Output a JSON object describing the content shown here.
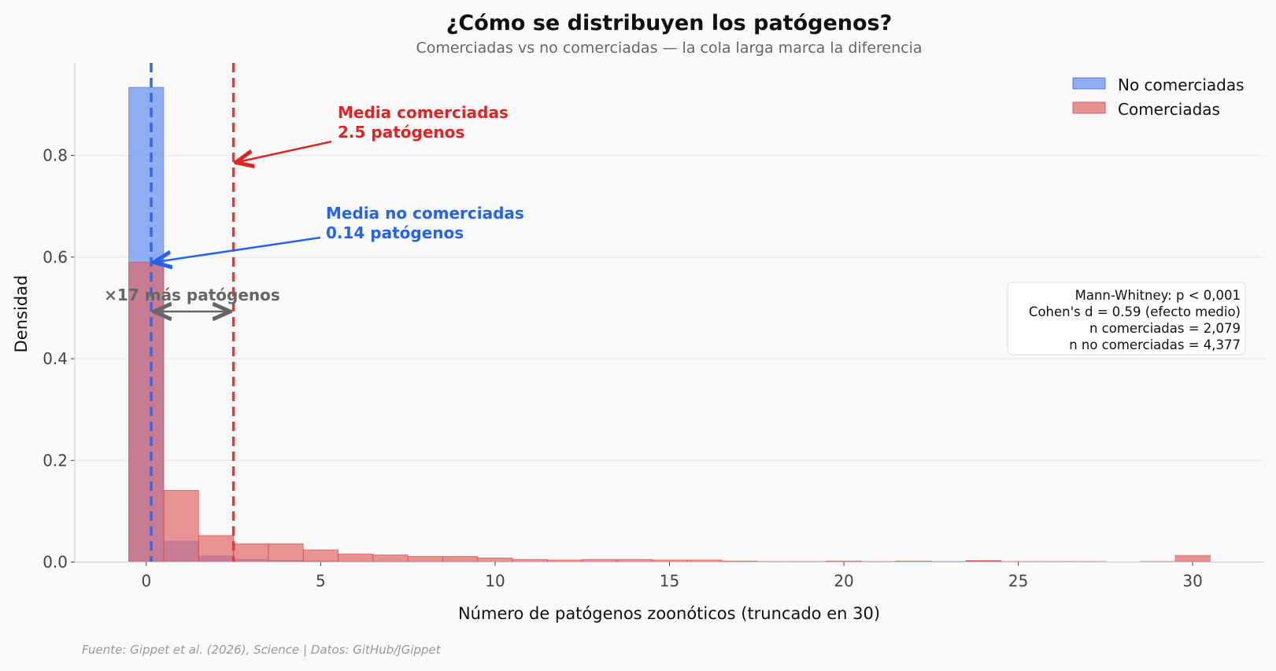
{
  "chart_data": {
    "type": "bar",
    "title": "¿Cómo se distribuyen los patógenos?",
    "subtitle": "Comerciadas vs no comerciadas — la cola larga marca la diferencia",
    "xlabel": "Número de patógenos zoonóticos (truncado en 30)",
    "ylabel": "Densidad",
    "xlim": [
      -2.05,
      32.05
    ],
    "ylim": [
      0,
      0.982
    ],
    "x_ticks": [
      0,
      5,
      10,
      15,
      20,
      25,
      30
    ],
    "y_ticks": [
      0.0,
      0.2,
      0.4,
      0.6,
      0.8
    ],
    "y_tick_labels": [
      "0.0",
      "0.2",
      "0.4",
      "0.6",
      "0.8"
    ],
    "grid": "horizontal",
    "legend_position": "top-right",
    "bins": [
      0,
      1,
      2,
      3,
      4,
      5,
      6,
      7,
      8,
      9,
      10,
      11,
      12,
      13,
      14,
      15,
      16,
      17,
      18,
      19,
      20,
      21,
      22,
      23,
      24,
      25,
      26,
      27,
      28,
      29,
      30
    ],
    "bin_width": 1,
    "series": [
      {
        "name": "No comerciadas",
        "color": "#6b93f0",
        "values": [
          0.934,
          0.041,
          0.012,
          0.005,
          0.003,
          0.002,
          0.001,
          0.001,
          0.001,
          0.001,
          0.0005,
          0.0003,
          0.0003,
          0.0003,
          0.0003,
          0.0002,
          0.0002,
          0,
          0,
          0,
          0,
          0,
          0,
          0.001,
          0.002,
          0,
          0,
          0,
          0,
          0,
          0.001
        ]
      },
      {
        "name": "Comerciadas",
        "color": "#e06666",
        "values": [
          0.59,
          0.141,
          0.052,
          0.036,
          0.036,
          0.024,
          0.016,
          0.014,
          0.011,
          0.011,
          0.008,
          0.005,
          0.004,
          0.005,
          0.005,
          0.004,
          0.004,
          0.002,
          0.001,
          0.001,
          0.002,
          0.001,
          0.002,
          0,
          0.003,
          0.001,
          0.001,
          0.001,
          0,
          0.001,
          0.013
        ]
      }
    ],
    "mean_lines": [
      {
        "value": 0.14,
        "color": "#3a66e8"
      },
      {
        "value": 2.5,
        "color": "#dc3c3c"
      }
    ],
    "annotations": {
      "mean_commercial": {
        "line1": "Media comerciadas",
        "line2": "2.5 patógenos",
        "color": "#dc2626"
      },
      "mean_noncommercial": {
        "line1": "Media no comerciadas",
        "line2": "0.14 patógenos",
        "color": "#2563eb"
      },
      "ratio": {
        "text": "×17 más patógenos",
        "color": "#666666"
      }
    },
    "stats_box": [
      "Mann-Whitney: p < 0,001",
      "Cohen's d = 0.59 (efecto medio)",
      "n comerciadas = 2,079",
      "n no comerciadas = 4,377"
    ],
    "footer": "Fuente: Gippet et al. (2026), Science | Datos: GitHub/JGippet"
  }
}
